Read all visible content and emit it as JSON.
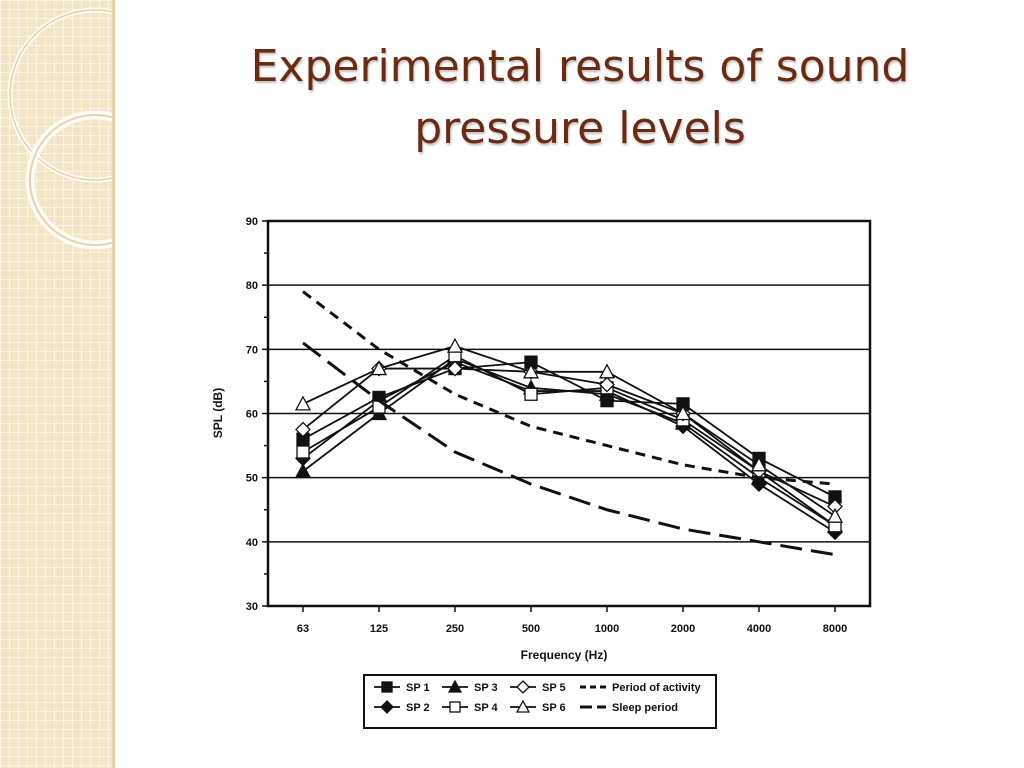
{
  "slide": {
    "title": "Experimental results of sound pressure levels"
  },
  "colors": {
    "title": "#6b2b12",
    "sidebar": "#f3e6c4",
    "ink": "#111111"
  },
  "chart_data": {
    "type": "line",
    "title": "",
    "xlabel": "Frequency (Hz)",
    "ylabel": "SPL (dB)",
    "categories": [
      "63",
      "125",
      "250",
      "500",
      "1000",
      "2000",
      "4000",
      "8000"
    ],
    "ylim": [
      30,
      90
    ],
    "yticks": [
      30,
      40,
      50,
      60,
      70,
      80,
      90
    ],
    "grid": "horizontal",
    "legend_position": "bottom",
    "series": [
      {
        "name": "SP 1",
        "marker": "square-filled",
        "line": "solid",
        "values": [
          56,
          62.5,
          67,
          68,
          62,
          61.5,
          53,
          47
        ]
      },
      {
        "name": "SP 2",
        "marker": "diamond-filled",
        "line": "solid",
        "values": [
          53,
          62,
          68,
          63.5,
          63.5,
          58,
          49,
          41.5
        ]
      },
      {
        "name": "SP 3",
        "marker": "triangle-filled",
        "line": "solid",
        "values": [
          51,
          60,
          68.5,
          64,
          63,
          58.5,
          50,
          42.5
        ]
      },
      {
        "name": "SP 4",
        "marker": "square-open",
        "line": "solid",
        "values": [
          54,
          61,
          69,
          63,
          64,
          59,
          51,
          42.5
        ]
      },
      {
        "name": "SP 5",
        "marker": "diamond-open",
        "line": "solid",
        "values": [
          57.5,
          67,
          67,
          66.5,
          64.5,
          60,
          51,
          45.5
        ]
      },
      {
        "name": "SP 6",
        "marker": "triangle-open",
        "line": "solid",
        "values": [
          61.5,
          67,
          70.5,
          66.5,
          66.5,
          60,
          52,
          44
        ]
      },
      {
        "name": "Period of activity",
        "marker": "none",
        "line": "dashed",
        "values": [
          79,
          70,
          63,
          58,
          55,
          52,
          50,
          49
        ]
      },
      {
        "name": "Sleep period",
        "marker": "none",
        "line": "long-dashed",
        "values": [
          71,
          62,
          54,
          49,
          45,
          42,
          40,
          38
        ]
      }
    ]
  }
}
